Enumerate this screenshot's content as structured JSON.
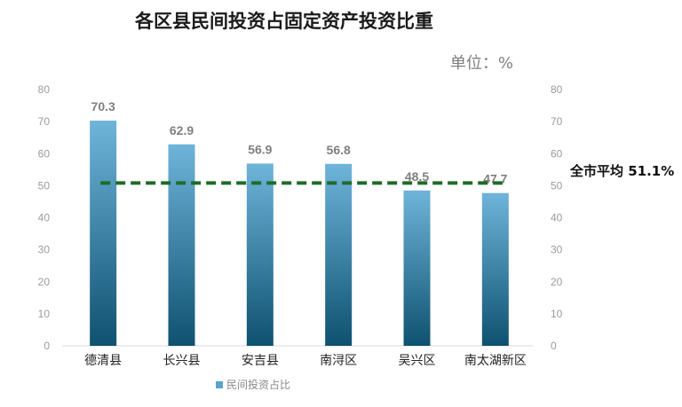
{
  "chart_data": {
    "type": "bar",
    "title": "各区县民间投资占固定资产投资比重",
    "unit_label": "单位：%",
    "categories": [
      "德清县",
      "长兴县",
      "安吉县",
      "南浔区",
      "吴兴区",
      "南太湖新区"
    ],
    "series": [
      {
        "name": "民间投资占比",
        "values": [
          70.3,
          62.9,
          56.9,
          56.8,
          48.5,
          47.7
        ]
      }
    ],
    "value_labels": [
      "70.3",
      "62.9",
      "56.9",
      "56.8",
      "48.5",
      "47.7"
    ],
    "reference_line": {
      "label": "全市平均 51.1%",
      "value": 51.1,
      "color": "#1f6b2a",
      "style": "dashed"
    },
    "ylim": [
      0,
      80
    ],
    "yticks": [
      0,
      10,
      20,
      30,
      40,
      50,
      60,
      70,
      80
    ],
    "secondary_ylim": [
      0,
      80
    ],
    "grid": false,
    "legend_position": "bottom-center",
    "colors": {
      "bar_top": "#6fb4da",
      "bar_bottom": "#0e5170",
      "tick": "#9a9a9a",
      "legend_swatch": "#5aa3cc"
    }
  }
}
